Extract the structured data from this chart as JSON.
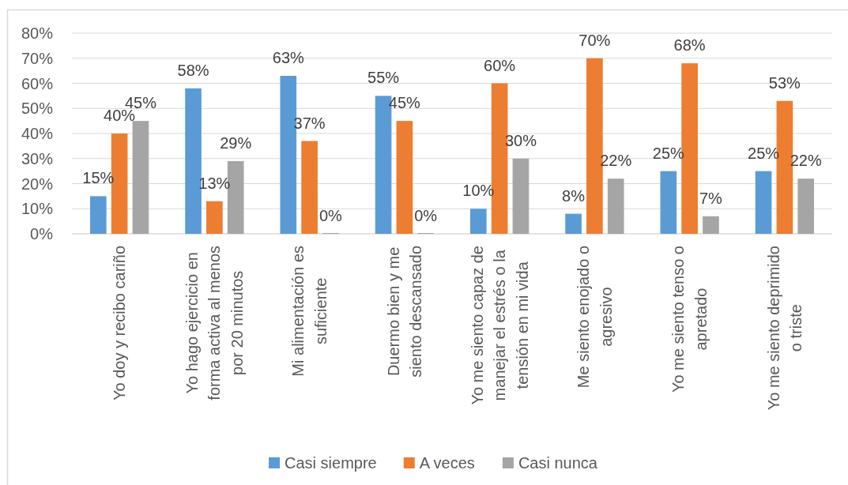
{
  "chart_data": {
    "type": "bar",
    "categories": [
      "Yo doy y recibo cariño",
      "Yo hago ejercicio en forma activa al menos por 20 minutos",
      "Mi alimentación es suficiente",
      "Duermo bien y me siento descansado",
      "Yo me siento capaz de manejar el estrés o la tensión en mi vida",
      "Me siento enojado o agresivo",
      "Yo me siento tenso o apretado",
      "Yo me siento deprimido o triste"
    ],
    "series": [
      {
        "name": "Casi siempre",
        "color": "#5b9bd5",
        "values": [
          15,
          58,
          63,
          55,
          10,
          8,
          25,
          25
        ],
        "value_labels": [
          "15%",
          "58%",
          "63%",
          "55%",
          "10%",
          "8%",
          "25%",
          "25%"
        ]
      },
      {
        "name": "A veces",
        "color": "#ed7d31",
        "values": [
          40,
          13,
          37,
          45,
          60,
          70,
          68,
          53
        ],
        "value_labels": [
          "40%",
          "13%",
          "37%",
          "45%",
          "60%",
          "70%",
          "68%",
          "53%"
        ]
      },
      {
        "name": "Casi nunca",
        "color": "#a5a5a5",
        "values": [
          45,
          29,
          0,
          0,
          30,
          22,
          7,
          22
        ],
        "value_labels": [
          "45%",
          "29%",
          "0%",
          "0%",
          "30%",
          "22%",
          "7%",
          "22%"
        ]
      }
    ],
    "ylim": [
      0,
      80
    ],
    "yticks": [
      {
        "value": 0,
        "label": "0%"
      },
      {
        "value": 10,
        "label": "10%"
      },
      {
        "value": 20,
        "label": "20%"
      },
      {
        "value": 30,
        "label": "30%"
      },
      {
        "value": 40,
        "label": "40%"
      },
      {
        "value": 50,
        "label": "50%"
      },
      {
        "value": 60,
        "label": "60%"
      },
      {
        "value": 70,
        "label": "70%"
      },
      {
        "value": 80,
        "label": "80%"
      }
    ],
    "grid": "y",
    "legend": "bottom"
  }
}
